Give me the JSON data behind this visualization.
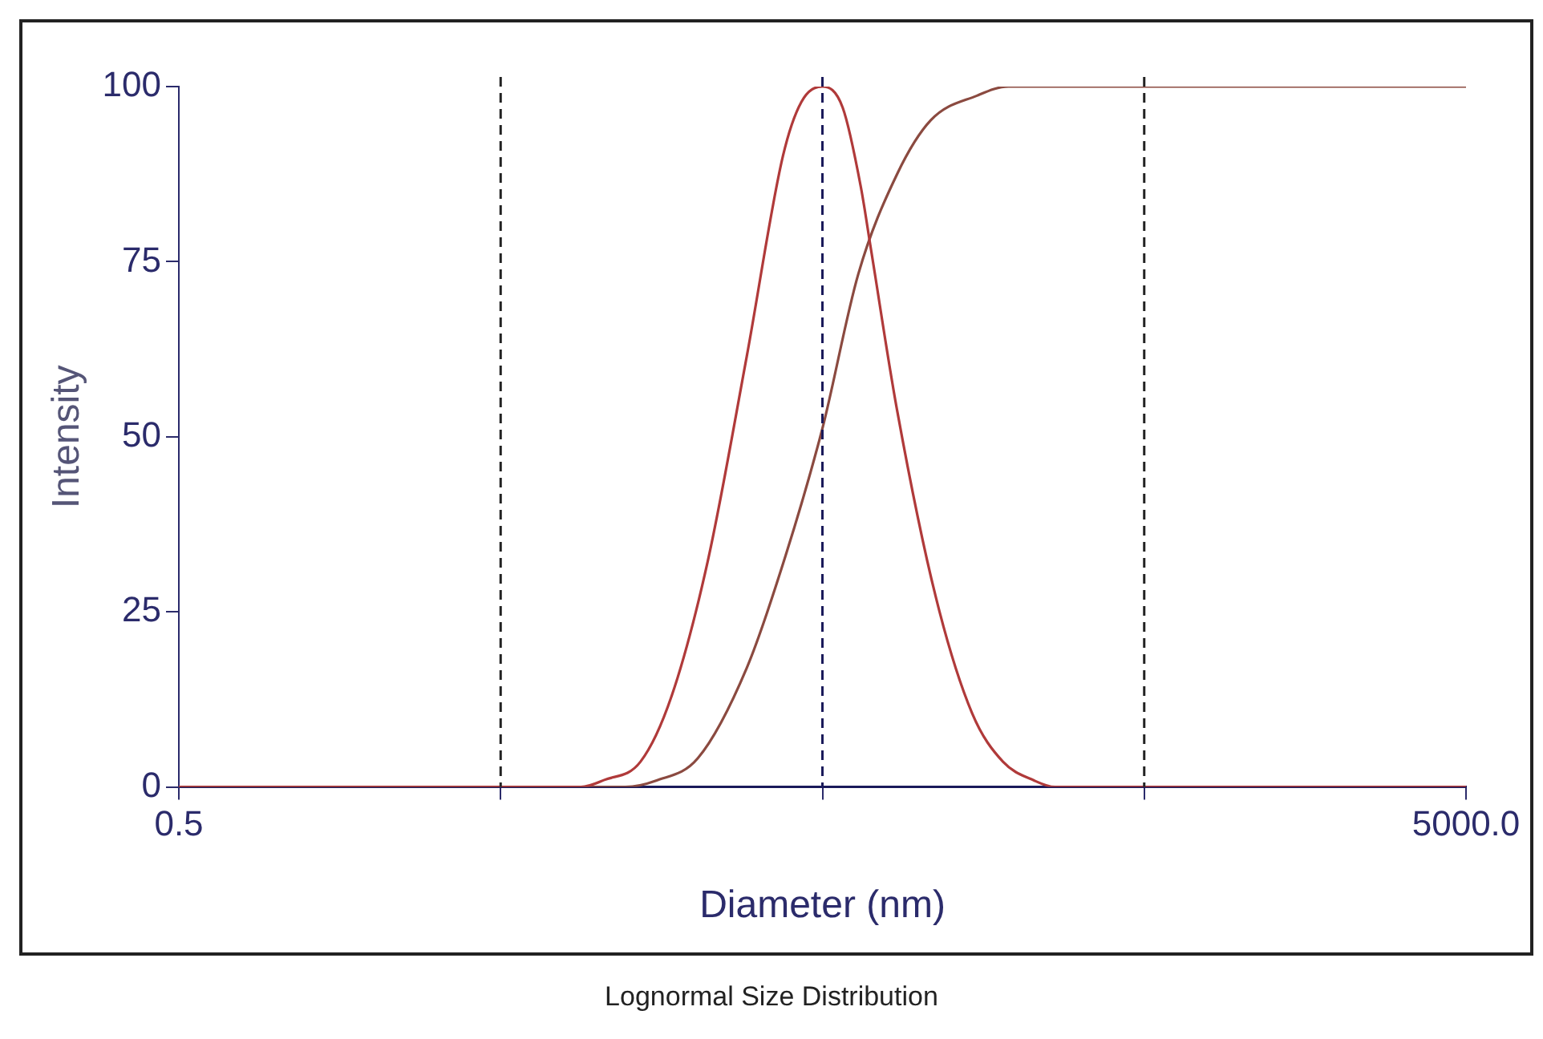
{
  "chart_data": {
    "type": "line",
    "xlabel": "Diameter (nm)",
    "ylabel": "Intensity",
    "log": "x",
    "xlim": [
      0.5,
      5000
    ],
    "xticks": [
      {
        "value": 0.5,
        "label": "0.5"
      },
      {
        "value": 5,
        "label": null
      },
      {
        "value": 50,
        "label": null
      },
      {
        "value": 500,
        "label": null
      },
      {
        "value": 5000,
        "label": "5000.0"
      }
    ],
    "ylim": [
      0,
      100
    ],
    "yticks": [
      0,
      25,
      50,
      75,
      100
    ],
    "grid": false,
    "legend": false,
    "marker": "none",
    "line_style": "solid",
    "series": [
      {
        "color": "#b03a3a",
        "x": [
          0.5,
          8.88,
          10.5,
          13.6,
          17.0,
          22.0,
          29.1,
          37.7,
          43.0,
          50,
          57.8,
          65.8,
          70.8,
          85.3,
          112.7,
          146,
          182,
          228,
          264,
          5000
        ],
        "values": [
          0,
          0,
          1.0,
          3.6,
          13.0,
          32.2,
          61.5,
          90.1,
          97.8,
          100,
          97.0,
          85.7,
          76.7,
          53.8,
          27.0,
          10.5,
          3.6,
          0.9,
          0,
          0
        ]
      },
      {
        "color": "#8b4a40",
        "x": [
          0.5,
          12.2,
          15.2,
          20.5,
          29.1,
          38.4,
          50,
          64.6,
          85.3,
          108.6,
          151,
          189,
          5000
        ],
        "values": [
          0,
          0,
          0.9,
          4.1,
          17.0,
          33.0,
          51.2,
          73.2,
          87.5,
          95.2,
          98.7,
          100,
          100
        ]
      }
    ],
    "ref_lines": [
      {
        "axis": "x",
        "value": 5,
        "color": "#222222",
        "line_style": "dashed"
      },
      {
        "axis": "x",
        "value": 50,
        "color": "#1a1a5a",
        "line_style": "dashed"
      },
      {
        "axis": "x",
        "value": 500,
        "color": "#222222",
        "line_style": "dashed"
      }
    ],
    "annotations": [
      "Lognormal Size Distribution"
    ]
  }
}
